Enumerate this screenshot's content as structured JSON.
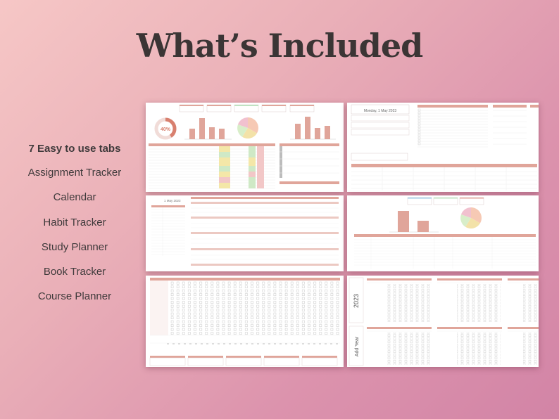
{
  "title": "What’s Included",
  "features": {
    "heading": "7 Easy to use tabs",
    "items": [
      "Assignment Tracker",
      "Calendar",
      "Habit Tracker",
      "Study Planner",
      "Book Tracker",
      "Course Planner"
    ]
  },
  "panel_assignment": {
    "progress": "40%",
    "progress_value": 0.4
  },
  "panel_calendar": {
    "date": "Monday, 1 May 2023"
  },
  "panel_study": {
    "date": "1 May 2023"
  },
  "panel_course": {
    "year": "2023",
    "add_year": "Add Year"
  },
  "colors": {
    "accent": "#e0a59a",
    "accent_dark": "#d8806f",
    "pie": [
      "#f6c9b4",
      "#f3e2a8",
      "#d8eec9",
      "#f1c1cf"
    ]
  }
}
